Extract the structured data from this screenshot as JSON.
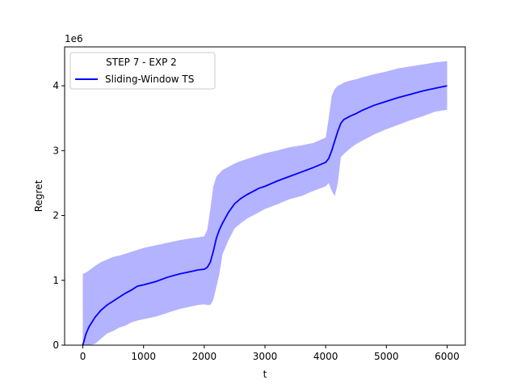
{
  "chart_data": {
    "type": "line",
    "xlabel": "t",
    "ylabel": "Regret",
    "y_offset_label": "1e6",
    "xlim": [
      -300,
      6300
    ],
    "ylim": [
      0,
      4.6
    ],
    "x_ticks": [
      0,
      1000,
      2000,
      3000,
      4000,
      5000,
      6000
    ],
    "x_tick_labels": [
      "0",
      "1000",
      "2000",
      "3000",
      "4000",
      "5000",
      "6000"
    ],
    "y_ticks": [
      0,
      1,
      2,
      3,
      4
    ],
    "y_tick_labels": [
      "0",
      "1",
      "2",
      "3",
      "4"
    ],
    "grid": false,
    "legend": {
      "title": "STEP 7 - EXP 2",
      "placement": "top-left"
    },
    "series": [
      {
        "name": "Sliding-Window TS",
        "color": "#0000ff",
        "band_color": "#8080ff",
        "band_opacity": 0.6,
        "x": [
          0,
          50,
          100,
          200,
          300,
          400,
          500,
          600,
          700,
          800,
          900,
          1000,
          1200,
          1400,
          1600,
          1800,
          1900,
          2000,
          2050,
          2100,
          2150,
          2200,
          2250,
          2300,
          2400,
          2500,
          2600,
          2700,
          2800,
          2900,
          3000,
          3200,
          3400,
          3600,
          3800,
          4000,
          4050,
          4100,
          4150,
          4200,
          4250,
          4300,
          4400,
          4500,
          4600,
          4800,
          5000,
          5200,
          5400,
          5600,
          5800,
          6000
        ],
        "mean": [
          0,
          0.17,
          0.28,
          0.43,
          0.54,
          0.62,
          0.68,
          0.74,
          0.8,
          0.85,
          0.91,
          0.93,
          0.98,
          1.05,
          1.1,
          1.14,
          1.16,
          1.17,
          1.2,
          1.28,
          1.45,
          1.65,
          1.78,
          1.88,
          2.05,
          2.18,
          2.26,
          2.32,
          2.37,
          2.42,
          2.45,
          2.53,
          2.6,
          2.67,
          2.74,
          2.82,
          2.88,
          3.0,
          3.15,
          3.3,
          3.42,
          3.48,
          3.53,
          3.57,
          3.62,
          3.7,
          3.76,
          3.82,
          3.87,
          3.92,
          3.96,
          4.0
        ],
        "upper": [
          1.1,
          1.12,
          1.15,
          1.22,
          1.28,
          1.32,
          1.36,
          1.38,
          1.41,
          1.44,
          1.47,
          1.5,
          1.54,
          1.58,
          1.62,
          1.65,
          1.66,
          1.68,
          1.78,
          2.1,
          2.45,
          2.6,
          2.65,
          2.7,
          2.75,
          2.8,
          2.84,
          2.87,
          2.9,
          2.93,
          2.96,
          3.0,
          3.05,
          3.08,
          3.12,
          3.2,
          3.5,
          3.85,
          3.95,
          4.0,
          4.02,
          4.05,
          4.08,
          4.1,
          4.13,
          4.18,
          4.22,
          4.27,
          4.3,
          4.33,
          4.36,
          4.38
        ],
        "lower": [
          0,
          0,
          0,
          0.02,
          0.1,
          0.18,
          0.22,
          0.27,
          0.3,
          0.35,
          0.38,
          0.4,
          0.44,
          0.5,
          0.56,
          0.6,
          0.62,
          0.63,
          0.62,
          0.62,
          0.7,
          0.9,
          1.1,
          1.4,
          1.62,
          1.8,
          1.88,
          1.95,
          2.0,
          2.05,
          2.1,
          2.17,
          2.25,
          2.3,
          2.38,
          2.45,
          2.5,
          2.38,
          2.3,
          2.5,
          2.9,
          2.95,
          3.03,
          3.1,
          3.15,
          3.25,
          3.33,
          3.4,
          3.47,
          3.53,
          3.6,
          3.63
        ]
      }
    ]
  }
}
